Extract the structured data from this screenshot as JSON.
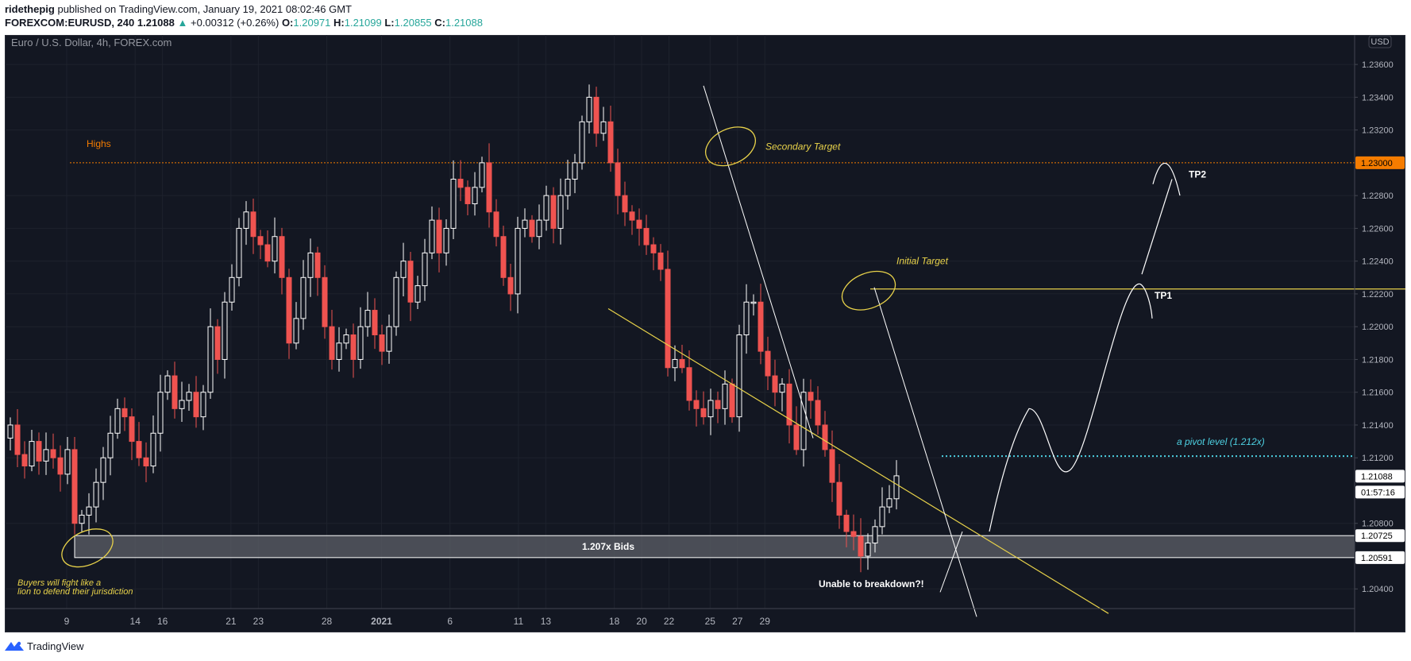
{
  "header": {
    "author": "ridethepig",
    "published_text": "published on TradingView.com, January 19, 2021 08:02:46 GMT",
    "symbol": "FOREXCOM:EURUSD, 240",
    "last": "1.21088",
    "change": "+0.00312 (+0.26%)",
    "o_label": "O:",
    "o": "1.20971",
    "h_label": "H:",
    "h": "1.21099",
    "l_label": "L:",
    "l": "1.20855",
    "c_label": "C:",
    "c": "1.21088"
  },
  "footer": {
    "brand": "TradingView"
  },
  "colors": {
    "background": "#131722",
    "up": "#ffffff",
    "down": "#ef5350",
    "accent_yellow": "#e8d24a",
    "highs_orange": "#f57c00",
    "pivot_cyan": "#4dd0e1",
    "grid": "#1e222d",
    "axis_text": "#b2b5be"
  },
  "chart_data": {
    "type": "candlestick",
    "title": "Euro / U.S. Dollar, 4h, FOREX.com",
    "currency_badge": "USD",
    "ylim": [
      1.2028,
      1.2378
    ],
    "y_ticks": [
      "1.23600",
      "1.23400",
      "1.23200",
      "1.22800",
      "1.22600",
      "1.22400",
      "1.22200",
      "1.22000",
      "1.21800",
      "1.21600",
      "1.21400",
      "1.21200",
      "1.20800",
      "1.20400"
    ],
    "x_ticks": [
      {
        "label": "9",
        "x": 0
      },
      {
        "label": "14",
        "x": 5
      },
      {
        "label": "16",
        "x": 7
      },
      {
        "label": "21",
        "x": 12
      },
      {
        "label": "23",
        "x": 14
      },
      {
        "label": "28",
        "x": 19
      },
      {
        "label": "2021",
        "x": 23
      },
      {
        "label": "6",
        "x": 28
      },
      {
        "label": "11",
        "x": 33
      },
      {
        "label": "13",
        "x": 35
      },
      {
        "label": "18",
        "x": 40
      },
      {
        "label": "20",
        "x": 42
      },
      {
        "label": "22",
        "x": 44
      },
      {
        "label": "25",
        "x": 47
      },
      {
        "label": "27",
        "x": 49
      },
      {
        "label": "29",
        "x": 51
      }
    ],
    "closes": [
      1.214,
      1.2122,
      1.2115,
      1.213,
      1.2118,
      1.2125,
      1.212,
      1.211,
      1.2125,
      1.208,
      1.2085,
      1.209,
      1.2105,
      1.212,
      1.2135,
      1.215,
      1.2145,
      1.213,
      1.212,
      1.2115,
      1.2135,
      1.216,
      1.217,
      1.215,
      1.2155,
      1.216,
      1.2145,
      1.216,
      1.22,
      1.218,
      1.2215,
      1.223,
      1.226,
      1.227,
      1.2255,
      1.225,
      1.224,
      1.2255,
      1.223,
      1.219,
      1.2205,
      1.223,
      1.2245,
      1.223,
      1.22,
      1.218,
      1.219,
      1.2195,
      1.218,
      1.22,
      1.221,
      1.2195,
      1.2185,
      1.22,
      1.223,
      1.224,
      1.2215,
      1.2225,
      1.2245,
      1.2265,
      1.2245,
      1.226,
      1.229,
      1.2285,
      1.2275,
      1.2285,
      1.23,
      1.227,
      1.2255,
      1.223,
      1.222,
      1.226,
      1.2265,
      1.2255,
      1.2265,
      1.228,
      1.226,
      1.228,
      1.229,
      1.23,
      1.2325,
      1.234,
      1.2318,
      1.2325,
      1.23,
      1.228,
      1.227,
      1.2265,
      1.226,
      1.225,
      1.2245,
      1.2235,
      1.2175,
      1.218,
      1.2175,
      1.2155,
      1.215,
      1.2145,
      1.2155,
      1.215,
      1.2165,
      1.2145,
      1.2195,
      1.2215,
      1.2215,
      1.2185,
      1.217,
      1.216,
      1.2165,
      1.214,
      1.2125,
      1.216,
      1.2155,
      1.214,
      1.2125,
      1.2105,
      1.2085,
      1.2075,
      1.2072,
      1.206,
      1.2068,
      1.2078,
      1.209,
      1.2095,
      1.2109
    ],
    "price_labels": {
      "highs": {
        "label": "1.23000",
        "value": 1.23
      },
      "last": {
        "label": "1.21088",
        "value": 1.21088
      },
      "countdown": "01:57:16",
      "zone_top": {
        "label": "1.20725",
        "value": 1.20725
      },
      "zone_bottom": {
        "label": "1.20591",
        "value": 1.20591
      }
    },
    "levels": {
      "highs": 1.23,
      "initial_target": 1.2223,
      "pivot": 1.2121,
      "zone_top": 1.20725,
      "zone_bottom": 1.20591
    },
    "annotations": {
      "highs": "Highs",
      "secondary_target": "Secondary Target",
      "initial_target": "Initial Target",
      "tp1": "TP1",
      "tp2": "TP2",
      "pivot": "a pivot level (1.212x)",
      "bids": "1.207x Bids",
      "breakdown": "Unable to breakdown?!",
      "buyers_line1": "Buyers will fight like a",
      "buyers_line2": "lion to defend their jurisdiction"
    },
    "grid": true
  }
}
